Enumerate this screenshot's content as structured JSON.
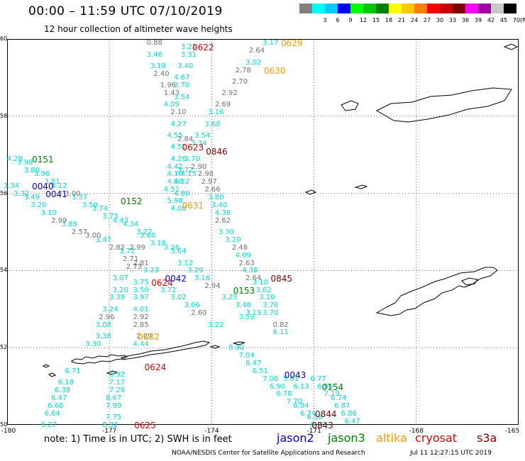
{
  "header": {
    "title": "00:00 – 11:59 UTC 07/10/2019",
    "subtitle": "12 hour collection of altimeter wave heights"
  },
  "colors": {
    "cyan": "#00d8d8",
    "gray": "#707070",
    "red": "#e00000",
    "orange": "#ff9900",
    "dark_red": "#800000",
    "green": "#008000",
    "blue": "#0000d0"
  },
  "color_scale": {
    "colors": [
      "#808080",
      "#00ffff",
      "#00c8ff",
      "#0000ff",
      "#00ff00",
      "#00c800",
      "#008000",
      "#ffff00",
      "#ffc800",
      "#ff8000",
      "#ff0000",
      "#c80000",
      "#800000",
      "#ff00ff",
      "#a000a0",
      "#c8c8c8",
      "#000000"
    ],
    "labels": [
      "",
      "3",
      "6",
      "9",
      "12",
      "15",
      "18",
      "21",
      "24",
      "27",
      "30",
      "33",
      "36",
      "39",
      "42",
      "45",
      "70"
    ],
    "unit": "(ft)"
  },
  "axes": {
    "x_ticks": [
      "-180",
      "-177",
      "-174",
      "-171",
      "-168",
      "-165"
    ],
    "y_ticks": [
      "60",
      "58",
      "56",
      "54",
      "52",
      "50"
    ]
  },
  "note": "note:  1) Time is in UTC;  2) SWH is in feet",
  "legend": [
    {
      "label": "jason2",
      "color": "#0000d0"
    },
    {
      "label": "jason3",
      "color": "#008000"
    },
    {
      "label": "altika",
      "color": "#ff9900"
    },
    {
      "label": "cryosat",
      "color": "#e00000"
    },
    {
      "label": "s3a",
      "color": "#800000"
    }
  ],
  "footer": {
    "credit": "NOAA/NESDIS Center for Satellite Applications and Research",
    "timestamp": "Jul 11 12:27:15 UTC 2019"
  },
  "time_tags": [
    {
      "text": "0622",
      "lon": -174.3,
      "lat": 59.8,
      "sat": "cryosat"
    },
    {
      "text": "0629",
      "lon": -171.7,
      "lat": 59.9,
      "sat": "altika"
    },
    {
      "text": "0630",
      "lon": -172.2,
      "lat": 59.2,
      "sat": "altika"
    },
    {
      "text": "0623",
      "lon": -174.6,
      "lat": 57.2,
      "sat": "cryosat"
    },
    {
      "text": "0846",
      "lon": -173.9,
      "lat": 57.1,
      "sat": "s3a"
    },
    {
      "text": "0151",
      "lon": -179.0,
      "lat": 56.9,
      "sat": "jason3"
    },
    {
      "text": "0040",
      "lon": -179.0,
      "lat": 56.2,
      "sat": "jason2"
    },
    {
      "text": "0041",
      "lon": -178.6,
      "lat": 56.0,
      "sat": "jason2"
    },
    {
      "text": "0152",
      "lon": -176.4,
      "lat": 55.8,
      "sat": "jason3"
    },
    {
      "text": "0631",
      "lon": -174.6,
      "lat": 55.7,
      "sat": "altika"
    },
    {
      "text": "0042",
      "lon": -175.1,
      "lat": 53.8,
      "sat": "jason2"
    },
    {
      "text": "0624",
      "lon": -175.5,
      "lat": 53.7,
      "sat": "cryosat"
    },
    {
      "text": "0845",
      "lon": -172.0,
      "lat": 53.8,
      "sat": "s3a"
    },
    {
      "text": "0153",
      "lon": -173.1,
      "lat": 53.5,
      "sat": "jason3"
    },
    {
      "text": "0632",
      "lon": -175.9,
      "lat": 52.3,
      "sat": "altika"
    },
    {
      "text": "0624",
      "lon": -175.7,
      "lat": 51.5,
      "sat": "cryosat"
    },
    {
      "text": "0043",
      "lon": -171.6,
      "lat": 51.3,
      "sat": "jason2"
    },
    {
      "text": "0154",
      "lon": -170.5,
      "lat": 51.0,
      "sat": "jason3"
    },
    {
      "text": "0844",
      "lon": -170.7,
      "lat": 50.3,
      "sat": "s3a"
    },
    {
      "text": "0843",
      "lon": -170.8,
      "lat": 50.0,
      "sat": "s3a"
    },
    {
      "text": "0625",
      "lon": -176.0,
      "lat": 50.0,
      "sat": "cryosat"
    }
  ],
  "readings": [
    {
      "text": "0.88",
      "lon": -175.7,
      "lat": 59.9,
      "c": "gray"
    },
    {
      "text": "3.23",
      "lon": -174.7,
      "lat": 59.8,
      "c": "cyan"
    },
    {
      "text": "3.46",
      "lon": -175.7,
      "lat": 59.6,
      "c": "cyan"
    },
    {
      "text": "3.31",
      "lon": -174.7,
      "lat": 59.6,
      "c": "cyan"
    },
    {
      "text": "2.64",
      "lon": -172.7,
      "lat": 59.7,
      "c": "gray"
    },
    {
      "text": "3.17",
      "lon": -172.3,
      "lat": 59.9,
      "c": "cyan"
    },
    {
      "text": "3.18",
      "lon": -175.6,
      "lat": 59.3,
      "c": "cyan"
    },
    {
      "text": "3.40",
      "lon": -174.8,
      "lat": 59.3,
      "c": "cyan"
    },
    {
      "text": "3.02",
      "lon": -172.8,
      "lat": 59.4,
      "c": "cyan"
    },
    {
      "text": "2.40",
      "lon": -175.5,
      "lat": 59.1,
      "c": "gray"
    },
    {
      "text": "4.67",
      "lon": -174.9,
      "lat": 59.0,
      "c": "cyan"
    },
    {
      "text": "2.78",
      "lon": -173.1,
      "lat": 59.2,
      "c": "gray"
    },
    {
      "text": "1.96",
      "lon": -175.3,
      "lat": 58.8,
      "c": "gray"
    },
    {
      "text": "3.70",
      "lon": -174.9,
      "lat": 58.8,
      "c": "cyan"
    },
    {
      "text": "2.70",
      "lon": -173.2,
      "lat": 58.9,
      "c": "gray"
    },
    {
      "text": "1.43",
      "lon": -175.2,
      "lat": 58.6,
      "c": "gray"
    },
    {
      "text": "3.54",
      "lon": -174.9,
      "lat": 58.5,
      "c": "cyan"
    },
    {
      "text": "2.92",
      "lon": -173.5,
      "lat": 58.6,
      "c": "gray"
    },
    {
      "text": "4.09",
      "lon": -175.2,
      "lat": 58.3,
      "c": "cyan"
    },
    {
      "text": "2.69",
      "lon": -173.7,
      "lat": 58.3,
      "c": "gray"
    },
    {
      "text": "2.10",
      "lon": -175.0,
      "lat": 58.1,
      "c": "gray"
    },
    {
      "text": "3.16",
      "lon": -173.9,
      "lat": 58.1,
      "c": "cyan"
    },
    {
      "text": "4.27",
      "lon": -175.0,
      "lat": 57.8,
      "c": "cyan"
    },
    {
      "text": "3.68",
      "lon": -174.0,
      "lat": 57.8,
      "c": "cyan"
    },
    {
      "text": "3.54",
      "lon": -174.3,
      "lat": 57.5,
      "c": "cyan"
    },
    {
      "text": "4.55",
      "lon": -175.1,
      "lat": 57.5,
      "c": "cyan"
    },
    {
      "text": "2.84",
      "lon": -174.8,
      "lat": 57.4,
      "c": "gray"
    },
    {
      "text": "3.34",
      "lon": -174.4,
      "lat": 57.3,
      "c": "cyan"
    },
    {
      "text": "4.51",
      "lon": -175.0,
      "lat": 57.2,
      "c": "cyan"
    },
    {
      "text": "4.26",
      "lon": -175.0,
      "lat": 56.9,
      "c": "cyan"
    },
    {
      "text": "3.70",
      "lon": -174.6,
      "lat": 56.9,
      "c": "cyan"
    },
    {
      "text": "4.42",
      "lon": -175.1,
      "lat": 56.7,
      "c": "cyan"
    },
    {
      "text": "3.72",
      "lon": -174.8,
      "lat": 56.6,
      "c": "cyan"
    },
    {
      "text": "2.90",
      "lon": -174.4,
      "lat": 56.7,
      "c": "gray"
    },
    {
      "text": "4.10",
      "lon": -175.1,
      "lat": 56.5,
      "c": "cyan"
    },
    {
      "text": "4.15",
      "lon": -174.7,
      "lat": 56.5,
      "c": "cyan"
    },
    {
      "text": "2.98",
      "lon": -174.2,
      "lat": 56.5,
      "c": "gray"
    },
    {
      "text": "4.80",
      "lon": -175.1,
      "lat": 56.3,
      "c": "cyan"
    },
    {
      "text": "4.12",
      "lon": -174.9,
      "lat": 56.3,
      "c": "cyan"
    },
    {
      "text": "2.97",
      "lon": -174.1,
      "lat": 56.3,
      "c": "gray"
    },
    {
      "text": "4.51",
      "lon": -175.2,
      "lat": 56.1,
      "c": "cyan"
    },
    {
      "text": "4.80",
      "lon": -174.9,
      "lat": 56.0,
      "c": "cyan"
    },
    {
      "text": "2.66",
      "lon": -174.0,
      "lat": 56.1,
      "c": "gray"
    },
    {
      "text": "5.98",
      "lon": -175.1,
      "lat": 55.8,
      "c": "cyan"
    },
    {
      "text": "3.80",
      "lon": -173.9,
      "lat": 55.9,
      "c": "cyan"
    },
    {
      "text": "4.08",
      "lon": -175.0,
      "lat": 55.6,
      "c": "cyan"
    },
    {
      "text": "3.40",
      "lon": -173.8,
      "lat": 55.7,
      "c": "cyan"
    },
    {
      "text": "4.38",
      "lon": -173.7,
      "lat": 55.5,
      "c": "cyan"
    },
    {
      "text": "4.28",
      "lon": -179.8,
      "lat": 56.9,
      "c": "cyan"
    },
    {
      "text": "3.98",
      "lon": -179.5,
      "lat": 56.8,
      "c": "cyan"
    },
    {
      "text": "3.80",
      "lon": -179.3,
      "lat": 56.6,
      "c": "cyan"
    },
    {
      "text": "3.96",
      "lon": -179.0,
      "lat": 56.5,
      "c": "cyan"
    },
    {
      "text": "3.81",
      "lon": -178.7,
      "lat": 56.3,
      "c": "cyan"
    },
    {
      "text": "3.34",
      "lon": -179.9,
      "lat": 56.2,
      "c": "cyan"
    },
    {
      "text": "4.12",
      "lon": -178.5,
      "lat": 56.2,
      "c": "cyan"
    },
    {
      "text": "3.32",
      "lon": -179.6,
      "lat": 56.0,
      "c": "cyan"
    },
    {
      "text": "3.00",
      "lon": -178.1,
      "lat": 56.0,
      "c": "gray"
    },
    {
      "text": "3.49",
      "lon": -179.3,
      "lat": 55.9,
      "c": "cyan"
    },
    {
      "text": "3.37",
      "lon": -177.9,
      "lat": 55.9,
      "c": "cyan"
    },
    {
      "text": "3.20",
      "lon": -179.1,
      "lat": 55.7,
      "c": "cyan"
    },
    {
      "text": "3.50",
      "lon": -177.6,
      "lat": 55.7,
      "c": "cyan"
    },
    {
      "text": "3.10",
      "lon": -178.8,
      "lat": 55.5,
      "c": "cyan"
    },
    {
      "text": "3.74",
      "lon": -177.3,
      "lat": 55.6,
      "c": "cyan"
    },
    {
      "text": "2.99",
      "lon": -178.5,
      "lat": 55.3,
      "c": "gray"
    },
    {
      "text": "3.73",
      "lon": -177.0,
      "lat": 55.4,
      "c": "cyan"
    },
    {
      "text": "3.89",
      "lon": -178.2,
      "lat": 55.2,
      "c": "cyan"
    },
    {
      "text": "4.43",
      "lon": -176.7,
      "lat": 55.3,
      "c": "cyan"
    },
    {
      "text": "2.57",
      "lon": -177.9,
      "lat": 55.0,
      "c": "gray"
    },
    {
      "text": "4.34",
      "lon": -176.4,
      "lat": 55.2,
      "c": "cyan"
    },
    {
      "text": "3.00",
      "lon": -177.5,
      "lat": 54.9,
      "c": "gray"
    },
    {
      "text": "3.27",
      "lon": -176.0,
      "lat": 55.0,
      "c": "cyan"
    },
    {
      "text": "3.47",
      "lon": -177.2,
      "lat": 54.8,
      "c": "cyan"
    },
    {
      "text": "3.60",
      "lon": -175.9,
      "lat": 54.9,
      "c": "cyan"
    },
    {
      "text": "2.82",
      "lon": -176.8,
      "lat": 54.6,
      "c": "gray"
    },
    {
      "text": "3.18",
      "lon": -175.6,
      "lat": 54.7,
      "c": "cyan"
    },
    {
      "text": "3.72",
      "lon": -176.5,
      "lat": 54.5,
      "c": "cyan"
    },
    {
      "text": "2.99",
      "lon": -176.2,
      "lat": 54.6,
      "c": "gray"
    },
    {
      "text": "3.26",
      "lon": -175.2,
      "lat": 54.6,
      "c": "cyan"
    },
    {
      "text": "2.71",
      "lon": -176.4,
      "lat": 54.3,
      "c": "gray"
    },
    {
      "text": "3.64",
      "lon": -175.0,
      "lat": 54.5,
      "c": "cyan"
    },
    {
      "text": "2.81",
      "lon": -176.1,
      "lat": 54.2,
      "c": "gray"
    },
    {
      "text": "3.12",
      "lon": -174.8,
      "lat": 54.2,
      "c": "cyan"
    },
    {
      "text": "2.73",
      "lon": -176.3,
      "lat": 54.1,
      "c": "gray"
    },
    {
      "text": "3.23",
      "lon": -175.8,
      "lat": 54.0,
      "c": "cyan"
    },
    {
      "text": "3.29",
      "lon": -174.5,
      "lat": 54.0,
      "c": "cyan"
    },
    {
      "text": "3.07",
      "lon": -176.7,
      "lat": 53.8,
      "c": "cyan"
    },
    {
      "text": "3.75",
      "lon": -176.1,
      "lat": 53.7,
      "c": "cyan"
    },
    {
      "text": "3.16",
      "lon": -174.3,
      "lat": 53.8,
      "c": "cyan"
    },
    {
      "text": "3.20",
      "lon": -176.7,
      "lat": 53.5,
      "c": "cyan"
    },
    {
      "text": "3.50",
      "lon": -176.1,
      "lat": 53.5,
      "c": "cyan"
    },
    {
      "text": "3.72",
      "lon": -175.3,
      "lat": 53.5,
      "c": "cyan"
    },
    {
      "text": "2.94",
      "lon": -174.0,
      "lat": 53.6,
      "c": "gray"
    },
    {
      "text": "3.39",
      "lon": -176.8,
      "lat": 53.3,
      "c": "cyan"
    },
    {
      "text": "3.97",
      "lon": -176.1,
      "lat": 53.3,
      "c": "cyan"
    },
    {
      "text": "3.02",
      "lon": -175.0,
      "lat": 53.3,
      "c": "cyan"
    },
    {
      "text": "3.25",
      "lon": -173.5,
      "lat": 53.3,
      "c": "cyan"
    },
    {
      "text": "3.24",
      "lon": -177.0,
      "lat": 53.0,
      "c": "cyan"
    },
    {
      "text": "4.01",
      "lon": -176.1,
      "lat": 53.0,
      "c": "cyan"
    },
    {
      "text": "3.06",
      "lon": -174.6,
      "lat": 53.1,
      "c": "cyan"
    },
    {
      "text": "3.48",
      "lon": -173.1,
      "lat": 53.1,
      "c": "cyan"
    },
    {
      "text": "2.96",
      "lon": -177.1,
      "lat": 52.8,
      "c": "gray"
    },
    {
      "text": "2.92",
      "lon": -176.1,
      "lat": 52.8,
      "c": "gray"
    },
    {
      "text": "2.60",
      "lon": -174.4,
      "lat": 52.9,
      "c": "gray"
    },
    {
      "text": "3.59",
      "lon": -173.0,
      "lat": 52.8,
      "c": "cyan"
    },
    {
      "text": "3.08",
      "lon": -177.2,
      "lat": 52.6,
      "c": "cyan"
    },
    {
      "text": "2.85",
      "lon": -176.1,
      "lat": 52.6,
      "c": "gray"
    },
    {
      "text": "3.22",
      "lon": -173.9,
      "lat": 52.6,
      "c": "cyan"
    },
    {
      "text": "3.38",
      "lon": -177.2,
      "lat": 52.3,
      "c": "cyan"
    },
    {
      "text": "2.29",
      "lon": -176.0,
      "lat": 52.3,
      "c": "gray"
    },
    {
      "text": "3.30",
      "lon": -177.5,
      "lat": 52.1,
      "c": "cyan"
    },
    {
      "text": "4.44",
      "lon": -176.1,
      "lat": 52.1,
      "c": "cyan"
    },
    {
      "text": "2.62",
      "lon": -173.7,
      "lat": 55.3,
      "c": "gray"
    },
    {
      "text": "3.30",
      "lon": -173.6,
      "lat": 55.0,
      "c": "cyan"
    },
    {
      "text": "3.20",
      "lon": -173.4,
      "lat": 54.8,
      "c": "cyan"
    },
    {
      "text": "2.48",
      "lon": -173.2,
      "lat": 54.6,
      "c": "gray"
    },
    {
      "text": "4.09",
      "lon": -173.1,
      "lat": 54.4,
      "c": "cyan"
    },
    {
      "text": "2.63",
      "lon": -173.0,
      "lat": 54.2,
      "c": "gray"
    },
    {
      "text": "4.38",
      "lon": -172.9,
      "lat": 54.0,
      "c": "cyan"
    },
    {
      "text": "2.64",
      "lon": -172.8,
      "lat": 53.8,
      "c": "gray"
    },
    {
      "text": "3.10",
      "lon": -172.6,
      "lat": 53.7,
      "c": "cyan"
    },
    {
      "text": "3.62",
      "lon": -172.5,
      "lat": 53.5,
      "c": "cyan"
    },
    {
      "text": "3.10",
      "lon": -172.4,
      "lat": 53.3,
      "c": "cyan"
    },
    {
      "text": "3.76",
      "lon": -172.3,
      "lat": 53.1,
      "c": "cyan"
    },
    {
      "text": "3.19",
      "lon": -172.8,
      "lat": 52.9,
      "c": "cyan"
    },
    {
      "text": "3.70",
      "lon": -172.3,
      "lat": 52.9,
      "c": "cyan"
    },
    {
      "text": "0.82",
      "lon": -172.0,
      "lat": 52.6,
      "c": "gray"
    },
    {
      "text": "6.11",
      "lon": -172.0,
      "lat": 52.4,
      "c": "cyan"
    },
    {
      "text": "6.90",
      "lon": -173.3,
      "lat": 52.0,
      "c": "cyan"
    },
    {
      "text": "7.04",
      "lon": -173.0,
      "lat": 51.8,
      "c": "cyan"
    },
    {
      "text": "6.47",
      "lon": -172.8,
      "lat": 51.6,
      "c": "cyan"
    },
    {
      "text": "6.51",
      "lon": -172.6,
      "lat": 51.4,
      "c": "cyan"
    },
    {
      "text": "7.06",
      "lon": -172.3,
      "lat": 51.2,
      "c": "cyan"
    },
    {
      "text": "6.90",
      "lon": -172.1,
      "lat": 51.0,
      "c": "cyan"
    },
    {
      "text": "6.78",
      "lon": -171.9,
      "lat": 50.8,
      "c": "cyan"
    },
    {
      "text": "7.70",
      "lon": -171.6,
      "lat": 50.6,
      "c": "cyan"
    },
    {
      "text": "6.94",
      "lon": -171.4,
      "lat": 50.5,
      "c": "cyan"
    },
    {
      "text": "6.74",
      "lon": -171.2,
      "lat": 50.3,
      "c": "cyan"
    },
    {
      "text": "6.58",
      "lon": -171.0,
      "lat": 50.2,
      "c": "cyan"
    },
    {
      "text": "6.72",
      "lon": -170.9,
      "lat": 50.0,
      "c": "cyan"
    },
    {
      "text": "5.61",
      "lon": -171.7,
      "lat": 51.2,
      "c": "cyan"
    },
    {
      "text": "6.13",
      "lon": -171.4,
      "lat": 51.0,
      "c": "cyan"
    },
    {
      "text": "6.77",
      "lon": -170.9,
      "lat": 51.2,
      "c": "cyan"
    },
    {
      "text": "6.89",
      "lon": -170.7,
      "lat": 51.0,
      "c": "cyan"
    },
    {
      "text": "7.19",
      "lon": -170.5,
      "lat": 50.8,
      "c": "cyan"
    },
    {
      "text": "6.74",
      "lon": -170.3,
      "lat": 50.7,
      "c": "cyan"
    },
    {
      "text": "6.87",
      "lon": -170.2,
      "lat": 50.5,
      "c": "cyan"
    },
    {
      "text": "6.86",
      "lon": -170.0,
      "lat": 50.3,
      "c": "cyan"
    },
    {
      "text": "6.47",
      "lon": -169.9,
      "lat": 50.1,
      "c": "cyan"
    },
    {
      "text": "6.71",
      "lon": -178.1,
      "lat": 51.4,
      "c": "cyan"
    },
    {
      "text": "6.18",
      "lon": -178.3,
      "lat": 51.1,
      "c": "cyan"
    },
    {
      "text": "6.38",
      "lon": -178.4,
      "lat": 50.9,
      "c": "cyan"
    },
    {
      "text": "6.47",
      "lon": -178.5,
      "lat": 50.7,
      "c": "cyan"
    },
    {
      "text": "6.68",
      "lon": -178.6,
      "lat": 50.5,
      "c": "cyan"
    },
    {
      "text": "6.64",
      "lon": -178.7,
      "lat": 50.3,
      "c": "cyan"
    },
    {
      "text": "6.27",
      "lon": -178.8,
      "lat": 50.0,
      "c": "cyan"
    },
    {
      "text": "6.92",
      "lon": -176.8,
      "lat": 51.3,
      "c": "cyan"
    },
    {
      "text": "7.17",
      "lon": -176.8,
      "lat": 51.1,
      "c": "cyan"
    },
    {
      "text": "7.26",
      "lon": -176.8,
      "lat": 50.9,
      "c": "cyan"
    },
    {
      "text": "8.67",
      "lon": -176.9,
      "lat": 50.7,
      "c": "cyan"
    },
    {
      "text": "7.99",
      "lon": -176.9,
      "lat": 50.5,
      "c": "cyan"
    },
    {
      "text": "7.75",
      "lon": -176.9,
      "lat": 50.2,
      "c": "cyan"
    },
    {
      "text": "8.32",
      "lon": -177.0,
      "lat": 50.0,
      "c": "cyan"
    }
  ]
}
